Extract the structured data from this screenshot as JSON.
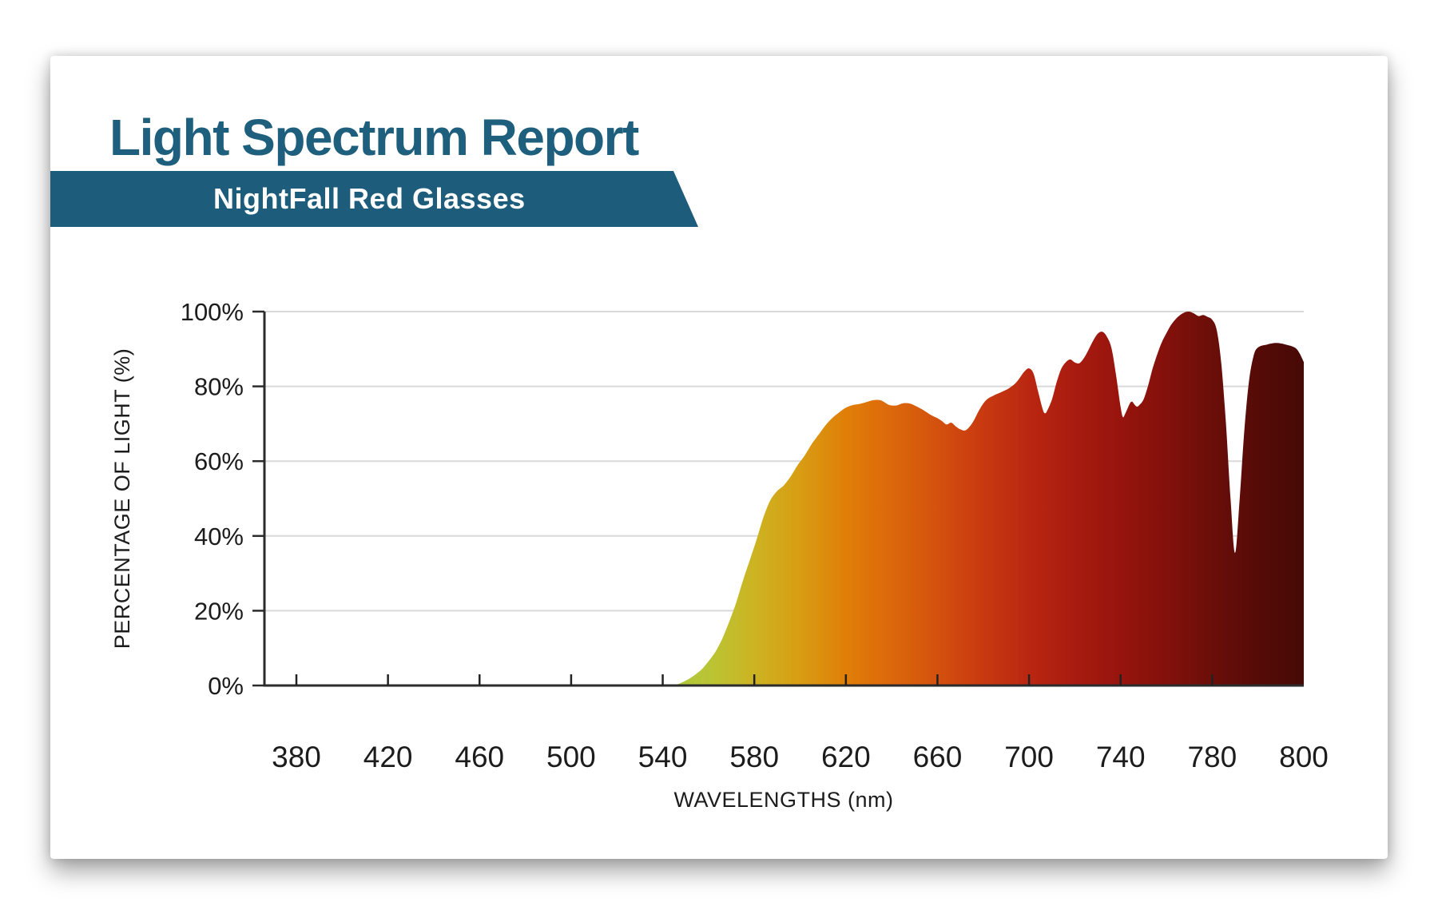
{
  "header": {
    "title": "Light Spectrum Report",
    "title_color": "#1e5f7d",
    "banner_label": "NightFall Red Glasses",
    "banner_color": "#1d5d7b",
    "banner_text_color": "#ffffff"
  },
  "chart_data": {
    "type": "area",
    "title": "",
    "xlabel": "WAVELENGTHS (nm)",
    "ylabel": "PERCENTAGE OF LIGHT (%)",
    "x_ticks": [
      380,
      420,
      460,
      500,
      540,
      580,
      620,
      660,
      700,
      740,
      780,
      800
    ],
    "x_tick_layout": "all ticks evenly spaced; last interval spans only 20 nm",
    "y_ticks": [
      0,
      20,
      40,
      60,
      80,
      100
    ],
    "y_tick_suffix": "%",
    "ylim": [
      0,
      100
    ],
    "grid": true,
    "gridline_color": "#d9d9d9",
    "axis_color": "#2b2b2b",
    "points": [
      [
        545,
        0
      ],
      [
        548,
        0.7
      ],
      [
        551,
        1.6
      ],
      [
        554,
        2.8
      ],
      [
        557,
        4.3
      ],
      [
        560,
        6.5
      ],
      [
        563,
        9
      ],
      [
        566,
        12.5
      ],
      [
        569,
        17
      ],
      [
        572,
        22
      ],
      [
        575,
        28
      ],
      [
        578,
        33.5
      ],
      [
        581,
        39
      ],
      [
        584,
        45
      ],
      [
        587,
        49.5
      ],
      [
        590,
        52
      ],
      [
        593,
        53.6
      ],
      [
        596,
        56
      ],
      [
        599,
        59
      ],
      [
        602,
        61.5
      ],
      [
        605,
        64.5
      ],
      [
        608,
        67
      ],
      [
        611,
        69.5
      ],
      [
        614,
        71.5
      ],
      [
        617,
        73
      ],
      [
        620,
        74.3
      ],
      [
        623,
        75
      ],
      [
        626,
        75.3
      ],
      [
        629,
        75.8
      ],
      [
        632,
        76.3
      ],
      [
        635,
        76.3
      ],
      [
        637,
        75.7
      ],
      [
        639,
        75
      ],
      [
        642,
        74.9
      ],
      [
        645,
        75.5
      ],
      [
        648,
        75.4
      ],
      [
        651,
        74.6
      ],
      [
        654,
        73.6
      ],
      [
        657,
        72.4
      ],
      [
        660,
        71.5
      ],
      [
        662,
        70.7
      ],
      [
        664,
        69.8
      ],
      [
        666,
        70.3
      ],
      [
        668,
        69.3
      ],
      [
        670,
        68.5
      ],
      [
        672,
        68.2
      ],
      [
        674,
        69.2
      ],
      [
        676,
        71
      ],
      [
        678,
        73.4
      ],
      [
        680,
        75.4
      ],
      [
        682,
        76.7
      ],
      [
        685,
        77.7
      ],
      [
        688,
        78.5
      ],
      [
        691,
        79.4
      ],
      [
        694,
        80.8
      ],
      [
        696,
        82.3
      ],
      [
        698,
        84
      ],
      [
        700,
        84.8
      ],
      [
        702,
        83.4
      ],
      [
        704,
        78.5
      ],
      [
        706,
        73.8
      ],
      [
        707,
        72.8
      ],
      [
        708,
        73.6
      ],
      [
        710,
        76.5
      ],
      [
        712,
        81
      ],
      [
        714,
        84.6
      ],
      [
        716,
        86.4
      ],
      [
        718,
        87.2
      ],
      [
        720,
        86.4
      ],
      [
        722,
        86.2
      ],
      [
        724,
        87.6
      ],
      [
        726,
        89.8
      ],
      [
        728,
        92.2
      ],
      [
        730,
        94.1
      ],
      [
        732,
        94.6
      ],
      [
        734,
        93.3
      ],
      [
        736,
        90.2
      ],
      [
        738,
        83
      ],
      [
        740,
        74.5
      ],
      [
        741,
        71.8
      ],
      [
        742,
        72.7
      ],
      [
        744,
        75.4
      ],
      [
        745,
        75.9
      ],
      [
        746,
        75.2
      ],
      [
        747,
        74.6
      ],
      [
        748,
        74.9
      ],
      [
        750,
        76.5
      ],
      [
        752,
        80.2
      ],
      [
        754,
        84.8
      ],
      [
        756,
        88.6
      ],
      [
        758,
        91.8
      ],
      [
        760,
        94.2
      ],
      [
        762,
        96.4
      ],
      [
        765,
        98.6
      ],
      [
        768,
        99.8
      ],
      [
        770,
        100
      ],
      [
        772,
        99.5
      ],
      [
        774,
        98.8
      ],
      [
        776,
        99.1
      ],
      [
        778,
        98.6
      ],
      [
        780,
        97.8
      ],
      [
        781,
        95
      ],
      [
        782,
        86
      ],
      [
        783,
        70
      ],
      [
        784,
        50
      ],
      [
        785,
        35.5
      ],
      [
        786,
        50
      ],
      [
        787,
        68
      ],
      [
        788,
        81
      ],
      [
        789,
        88
      ],
      [
        790,
        90.4
      ],
      [
        792,
        91.2
      ],
      [
        794,
        91.6
      ],
      [
        796,
        91.2
      ],
      [
        798,
        90.4
      ],
      [
        799,
        89
      ],
      [
        800,
        86.5
      ]
    ],
    "gradient_stops": [
      {
        "offset": 0.38,
        "color": "#a9c93e"
      },
      {
        "offset": 0.43,
        "color": "#bac434"
      },
      {
        "offset": 0.47,
        "color": "#ccb422"
      },
      {
        "offset": 0.515,
        "color": "#d89d13"
      },
      {
        "offset": 0.56,
        "color": "#e07e08"
      },
      {
        "offset": 0.6,
        "color": "#dc6a0a"
      },
      {
        "offset": 0.645,
        "color": "#d4520e"
      },
      {
        "offset": 0.69,
        "color": "#c93a10"
      },
      {
        "offset": 0.735,
        "color": "#ba2711"
      },
      {
        "offset": 0.78,
        "color": "#a81b0f"
      },
      {
        "offset": 0.825,
        "color": "#96140d"
      },
      {
        "offset": 0.868,
        "color": "#83100b"
      },
      {
        "offset": 0.912,
        "color": "#6b0e09"
      },
      {
        "offset": 0.956,
        "color": "#550b07"
      },
      {
        "offset": 1.0,
        "color": "#470a06"
      }
    ]
  }
}
